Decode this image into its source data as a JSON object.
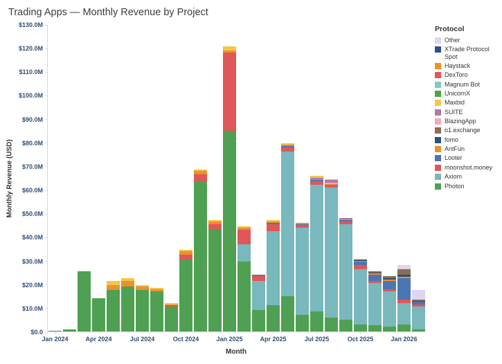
{
  "chart_data": {
    "type": "bar",
    "stacked": true,
    "title": "Trading Apps — Monthly Revenue by Project",
    "xlabel": "Month",
    "ylabel": "Monthly Revenue (USD)",
    "legend_title": "Protocol",
    "legend_position": "right",
    "grid": false,
    "y_axis": {
      "min": 0,
      "max": 130,
      "step": 10,
      "unit": "M",
      "prefix": "$"
    },
    "x_tick_labels": [
      "Jan 2024",
      "Apr 2024",
      "Jul 2024",
      "Oct 2024",
      "Jan 2025",
      "Apr 2025",
      "Jul 2025",
      "Oct 2025",
      "Jan 2026"
    ],
    "x_tick_every": 3,
    "categories": [
      "Jan 2024",
      "Feb 2024",
      "Mar 2024",
      "Apr 2024",
      "May 2024",
      "Jun 2024",
      "Jul 2024",
      "Aug 2024",
      "Sep 2024",
      "Oct 2024",
      "Nov 2024",
      "Dec 2024",
      "Jan 2025",
      "Feb 2025",
      "Mar 2025",
      "Apr 2025",
      "May 2025",
      "Jun 2025",
      "Jul 2025",
      "Aug 2025",
      "Sep 2025",
      "Oct 2025",
      "Nov 2025",
      "Dec 2025",
      "Jan 2026",
      "Feb 2026"
    ],
    "series": [
      {
        "name": "Photon",
        "color": "#4fa052",
        "values": [
          0.4,
          1.0,
          25.5,
          14.0,
          17.5,
          19.0,
          17.5,
          17.0,
          10.5,
          30.5,
          63.5,
          43.0,
          85.0,
          29.5,
          9.0,
          11.0,
          15.0,
          7.0,
          8.5,
          6.0,
          5.0,
          3.0,
          2.5,
          2.0,
          3.0,
          1.0
        ]
      },
      {
        "name": "Axiom",
        "color": "#79b8bc",
        "values": [
          0,
          0,
          0,
          0,
          0,
          0,
          0,
          0,
          0,
          0,
          0,
          0,
          0,
          7.5,
          12.5,
          31.5,
          61.0,
          37.0,
          53.5,
          55.0,
          40.5,
          23.5,
          18.0,
          15.0,
          9.0,
          9.5
        ]
      },
      {
        "name": "moonshot.money",
        "color": "#e05759",
        "values": [
          0,
          0,
          0,
          0,
          0,
          0,
          0,
          0,
          0.5,
          2.0,
          3.0,
          2.5,
          33.0,
          6.0,
          2.0,
          3.0,
          2.0,
          1.0,
          1.5,
          1.0,
          1.0,
          1.5,
          1.0,
          1.0,
          1.5,
          1.0
        ]
      },
      {
        "name": "Looter",
        "color": "#4a77b4",
        "values": [
          0,
          0,
          0,
          0,
          0,
          0,
          0,
          0,
          0,
          0,
          0,
          0,
          0,
          0,
          0.5,
          0.5,
          0.5,
          0.5,
          0.5,
          0,
          0.5,
          1.5,
          2.5,
          3.5,
          9.0,
          1.0
        ]
      },
      {
        "name": "AntFun",
        "color": "#ef8f2e",
        "values": [
          0,
          0,
          0,
          0,
          2.0,
          2.5,
          1.5,
          1.0,
          0.5,
          1.5,
          1.5,
          1.0,
          1.0,
          1.0,
          0,
          0.5,
          0.5,
          0.5,
          0.5,
          0.5,
          0.5,
          0.5,
          0.5,
          0.5,
          0.5,
          0.3
        ]
      },
      {
        "name": "fomo",
        "color": "#27547d",
        "values": [
          0,
          0,
          0,
          0,
          0,
          0,
          0,
          0,
          0,
          0,
          0,
          0,
          0,
          0,
          0,
          0,
          0,
          0,
          0,
          0,
          0,
          0.5,
          0.5,
          0.5,
          1.0,
          0.2
        ]
      },
      {
        "name": "o1.exchange",
        "color": "#8c6d54",
        "values": [
          0,
          0,
          0,
          0,
          0,
          0,
          0,
          0,
          0,
          0,
          0,
          0,
          0,
          0,
          0,
          0,
          0,
          0,
          0,
          0,
          0,
          0,
          0.5,
          1.0,
          2.5,
          0.5
        ]
      },
      {
        "name": "BlazingApp",
        "color": "#f7a8b8",
        "values": [
          0,
          0,
          0,
          0,
          0,
          0,
          0,
          0,
          0,
          0,
          0,
          0,
          0,
          0,
          0,
          0,
          0,
          0,
          0,
          0.5,
          0,
          0,
          0,
          0,
          0,
          0
        ]
      },
      {
        "name": "SUITE",
        "color": "#b279a7",
        "values": [
          0,
          0,
          0,
          0,
          0,
          0,
          0,
          0,
          0,
          0,
          0,
          0,
          0,
          0,
          0,
          0,
          0,
          0,
          0.5,
          1.0,
          0.5,
          0,
          0,
          0,
          0,
          0
        ]
      },
      {
        "name": "Maxbid",
        "color": "#f2c744",
        "values": [
          0,
          0,
          0,
          0,
          2.0,
          1.0,
          0.5,
          0.5,
          0.5,
          0.5,
          0.5,
          0.5,
          1.5,
          0.5,
          0,
          0.5,
          0.5,
          0,
          1.0,
          0.5,
          0,
          0,
          0,
          0,
          0,
          0
        ]
      },
      {
        "name": "UnicornX",
        "color": "#4ea64b",
        "values": [
          0,
          0,
          0,
          0,
          0,
          0,
          0,
          0,
          0,
          0,
          0,
          0,
          0,
          0,
          0,
          0,
          0,
          0,
          0,
          0,
          0,
          0,
          0,
          0,
          0,
          0
        ]
      },
      {
        "name": "Magnum Bot",
        "color": "#85c7c3",
        "values": [
          0,
          0,
          0,
          0,
          0,
          0,
          0,
          0,
          0,
          0,
          0,
          0,
          0,
          0,
          0,
          0,
          0,
          0,
          0,
          0,
          0,
          0,
          0,
          0,
          0,
          0
        ]
      },
      {
        "name": "DexToro",
        "color": "#e4575a",
        "values": [
          0,
          0,
          0,
          0,
          0,
          0,
          0,
          0,
          0,
          0,
          0,
          0,
          0,
          0,
          0,
          0,
          0,
          0,
          0,
          0,
          0,
          0,
          0,
          0,
          0,
          0
        ]
      },
      {
        "name": "Haystack",
        "color": "#f28e2b",
        "values": [
          0,
          0,
          0,
          0,
          0,
          0,
          0,
          0,
          0,
          0,
          0,
          0,
          0,
          0,
          0,
          0,
          0,
          0,
          0,
          0,
          0,
          0,
          0,
          0,
          0,
          0
        ]
      },
      {
        "name": "XTrade Protocol Spot",
        "color": "#2e4e8f",
        "values": [
          0,
          0,
          0,
          0,
          0,
          0,
          0,
          0,
          0,
          0,
          0,
          0,
          0,
          0,
          0,
          0,
          0,
          0,
          0,
          0,
          0,
          0,
          0,
          0,
          0,
          0
        ]
      },
      {
        "name": "Other",
        "color": "#dcd6f0",
        "values": [
          0,
          0,
          0,
          0,
          0,
          0,
          0,
          0,
          0,
          0,
          0,
          0,
          0,
          0,
          0,
          0,
          0,
          0,
          0,
          0,
          0,
          0,
          0,
          0,
          1.5,
          4.0
        ]
      }
    ]
  }
}
